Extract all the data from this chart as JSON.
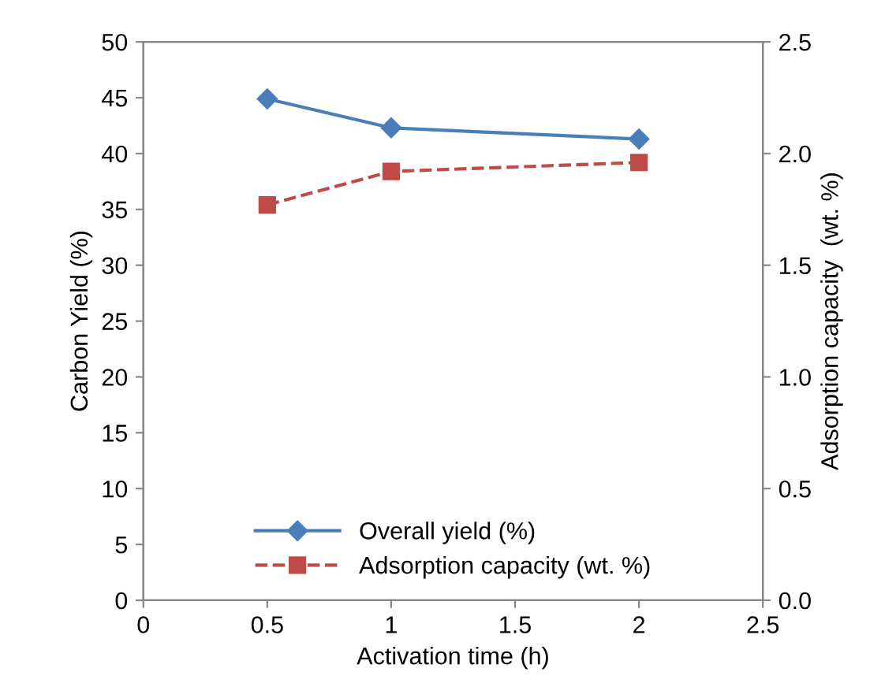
{
  "chart_data": {
    "type": "line",
    "xlabel": "Activation time (h)",
    "ylabel": "Carbon Yield (%)",
    "y2label": "Adsorption capacity  (wt. %)",
    "x": [
      0.5,
      1,
      2
    ],
    "series": [
      {
        "name": "Overall yield (%)",
        "color": "#4a7ebb",
        "values": [
          44.9,
          42.3,
          41.3
        ],
        "marker": "diamond",
        "line_style": "solid"
      },
      {
        "name": "Adsorption capacity (wt. %)",
        "color": "#be4b48",
        "values": [
          1.77,
          1.92,
          1.96
        ],
        "marker": "square",
        "line_style": "dashed",
        "axis": "y2"
      }
    ],
    "xlim": [
      0,
      2.5
    ],
    "xticks": [
      0,
      0.5,
      1,
      1.5,
      2,
      2.5
    ],
    "ylim": [
      0,
      50
    ],
    "yticks": [
      0,
      5,
      10,
      15,
      20,
      25,
      30,
      35,
      40,
      45,
      50
    ],
    "y2lim": [
      0,
      2.5
    ],
    "y2ticks": [
      {
        "value": 0,
        "label": "0.0"
      },
      {
        "value": 0.5,
        "label": "0.5"
      },
      {
        "value": 1,
        "label": "1.0"
      },
      {
        "value": 1.5,
        "label": "1.5"
      },
      {
        "value": 2,
        "label": "2.0"
      },
      {
        "value": 2.5,
        "label": "2.5"
      }
    ],
    "grid": false,
    "legend": "bottom"
  }
}
